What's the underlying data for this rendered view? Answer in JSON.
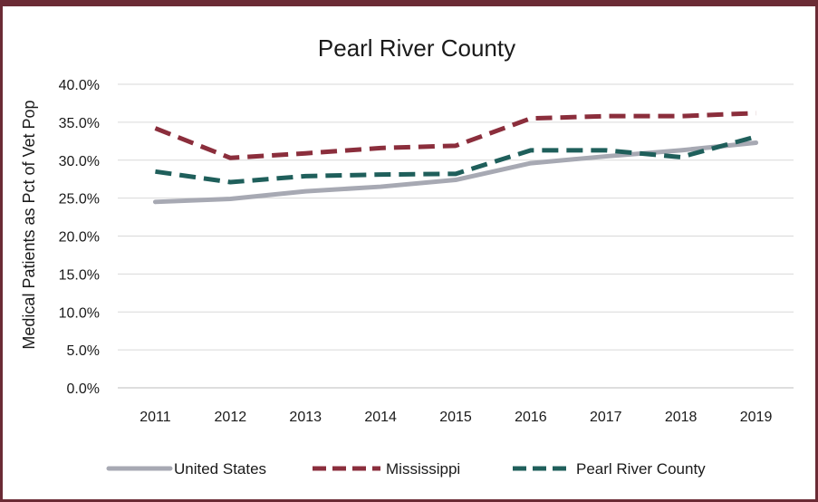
{
  "chart_data": {
    "type": "line",
    "title": "Pearl River County",
    "ylabel": "Medical Patients as Pct of Vet Pop",
    "xlabel": "",
    "ylim": [
      0,
      40
    ],
    "x": [
      "2011",
      "2012",
      "2013",
      "2014",
      "2015",
      "2016",
      "2017",
      "2018",
      "2019"
    ],
    "y_ticks": [
      "0.0%",
      "5.0%",
      "10.0%",
      "15.0%",
      "20.0%",
      "25.0%",
      "30.0%",
      "35.0%",
      "40.0%"
    ],
    "grid": true,
    "legend": "bottom",
    "series": [
      {
        "name": "United States",
        "color": "#a7a9b3",
        "style": "solid",
        "values": [
          24.5,
          24.9,
          25.9,
          26.5,
          27.4,
          29.6,
          30.5,
          31.3,
          32.3
        ]
      },
      {
        "name": "Mississippi",
        "color": "#8b2e3c",
        "style": "dashed",
        "values": [
          34.2,
          30.3,
          30.9,
          31.6,
          31.9,
          35.5,
          35.8,
          35.8,
          36.2
        ]
      },
      {
        "name": "Pearl River County",
        "color": "#1f5f5b",
        "style": "dashed",
        "values": [
          28.5,
          27.1,
          27.9,
          28.1,
          28.2,
          31.3,
          31.3,
          30.4,
          33.1
        ]
      }
    ]
  }
}
